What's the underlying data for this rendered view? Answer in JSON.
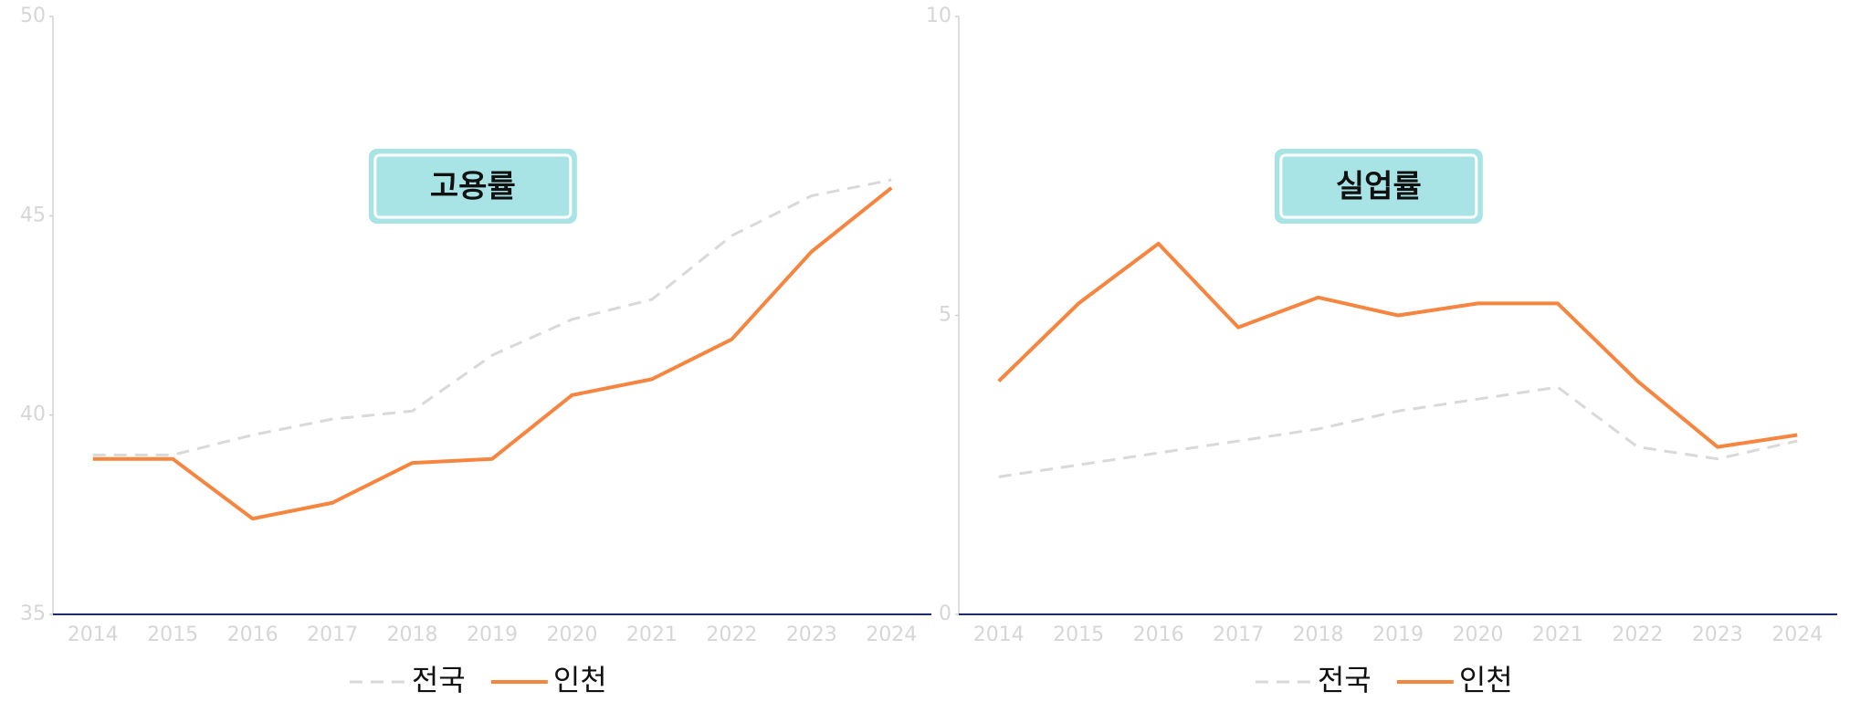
{
  "chart_data": [
    {
      "type": "line",
      "title": "고용률",
      "categories": [
        "2014",
        "2015",
        "2016",
        "2017",
        "2018",
        "2019",
        "2020",
        "2021",
        "2022",
        "2023",
        "2024"
      ],
      "series": [
        {
          "name": "전국",
          "color": "#d9d9d9",
          "style": "dashed",
          "values": [
            39.0,
            39.0,
            39.5,
            39.9,
            40.1,
            41.5,
            42.4,
            42.9,
            44.5,
            45.5,
            45.9
          ]
        },
        {
          "name": "인천",
          "color": "#f5853f",
          "style": "solid",
          "values": [
            38.9,
            38.9,
            37.4,
            37.8,
            38.8,
            38.9,
            40.5,
            40.9,
            41.9,
            44.1,
            45.7
          ]
        }
      ],
      "ylim": [
        35,
        50
      ],
      "yticks": [
        35,
        40,
        45,
        50
      ]
    },
    {
      "type": "line",
      "title": "실업률",
      "categories": [
        "2014",
        "2015",
        "2016",
        "2017",
        "2018",
        "2019",
        "2020",
        "2021",
        "2022",
        "2023",
        "2024"
      ],
      "series": [
        {
          "name": "전국",
          "color": "#d9d9d9",
          "style": "dashed",
          "values": [
            2.3,
            2.5,
            2.7,
            2.9,
            3.1,
            3.4,
            3.6,
            3.8,
            2.8,
            2.6,
            2.9
          ]
        },
        {
          "name": "인천",
          "color": "#f5853f",
          "style": "solid",
          "values": [
            3.9,
            5.2,
            6.2,
            4.8,
            5.3,
            5.0,
            5.2,
            5.2,
            3.9,
            2.8,
            3.0
          ]
        }
      ],
      "ylim": [
        0,
        10
      ],
      "yticks": [
        0,
        5,
        10
      ]
    }
  ]
}
